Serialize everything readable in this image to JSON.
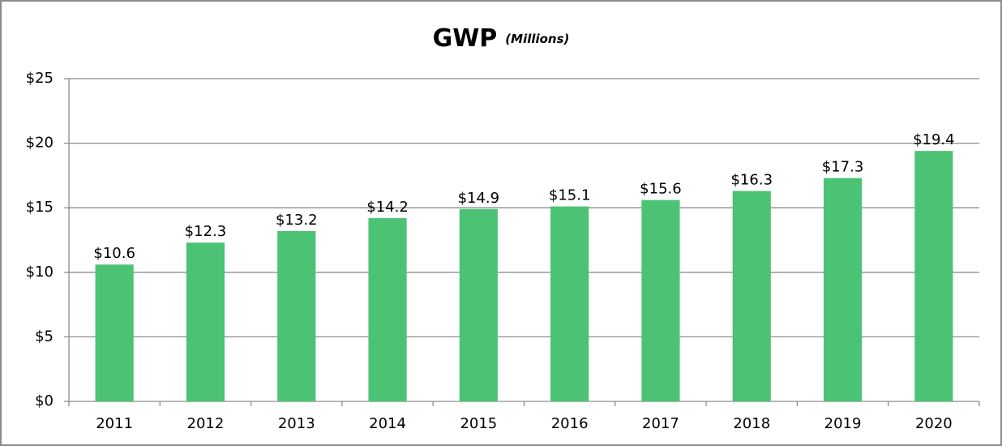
{
  "chart_data": {
    "type": "bar",
    "title": "GWP",
    "subtitle": "(Millions)",
    "categories": [
      "2011",
      "2012",
      "2013",
      "2014",
      "2015",
      "2016",
      "2017",
      "2018",
      "2019",
      "2020"
    ],
    "values": [
      10.6,
      12.3,
      13.2,
      14.2,
      14.9,
      15.1,
      15.6,
      16.3,
      17.3,
      19.4
    ],
    "value_labels": [
      "$10.6",
      "$12.3",
      "$13.2",
      "$14.2",
      "$14.9",
      "$15.1",
      "$15.6",
      "$16.3",
      "$17.3",
      "$19.4"
    ],
    "color": "#4cc274",
    "ylim": [
      0,
      25
    ],
    "yticks": [
      {
        "value": 0,
        "label": "$0"
      },
      {
        "value": 5,
        "label": "$5"
      },
      {
        "value": 10,
        "label": "$10"
      },
      {
        "value": 15,
        "label": "$15"
      },
      {
        "value": 20,
        "label": "$20"
      },
      {
        "value": 25,
        "label": "$25"
      }
    ],
    "grid": true
  }
}
